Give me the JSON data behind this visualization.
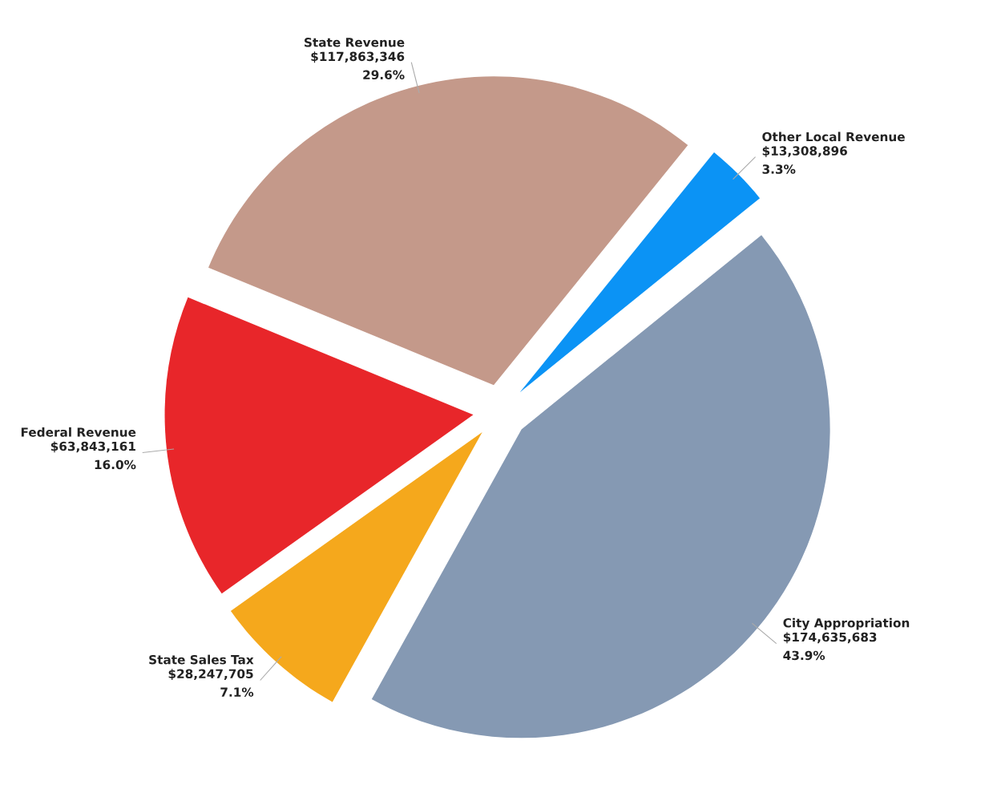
{
  "chart_data": {
    "type": "pie",
    "categories": [
      "Other Local Revenue",
      "City Appropriation",
      "State Sales Tax",
      "Federal Revenue",
      "State Revenue"
    ],
    "values": [
      13308896,
      174635683,
      28247705,
      63843161,
      117863346
    ],
    "colors": [
      "#0b93f5",
      "#8599b3",
      "#f5a81c",
      "#e8262a",
      "#c4998a"
    ],
    "value_labels": [
      "$13,308,896\n3.3%",
      "$174,635,683\n43.9%",
      "$28,247,705\n7.1%",
      "$63,843,161\n16.0%",
      "$117,863,346\n29.6%"
    ],
    "legend": false
  }
}
